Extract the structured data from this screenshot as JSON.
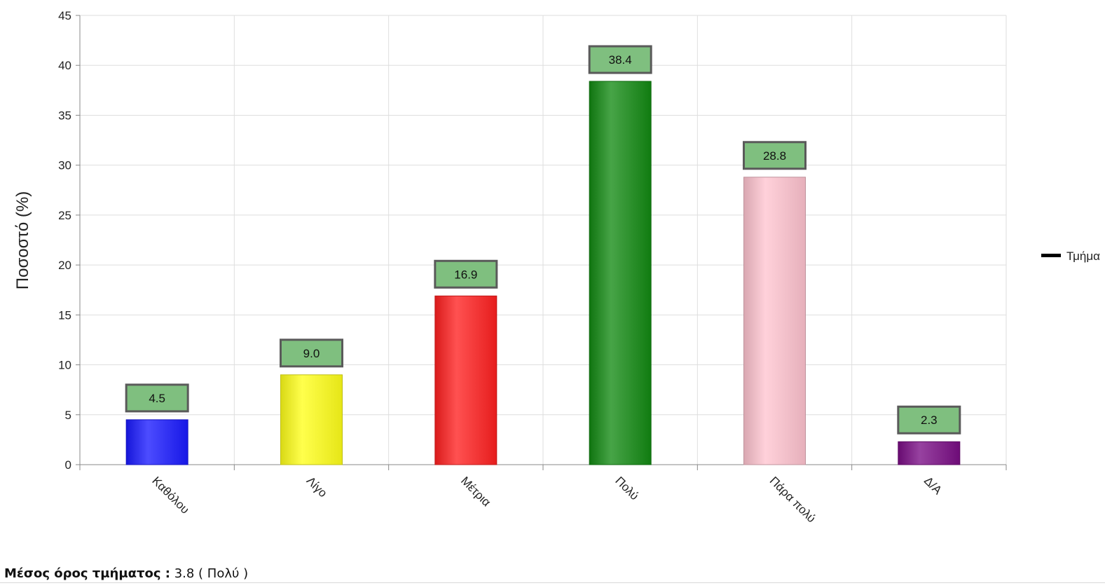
{
  "chart_data": {
    "type": "bar",
    "title": "",
    "xlabel": "",
    "ylabel": "Ποσοστό (%)",
    "ylim": [
      0,
      45
    ],
    "yticks": [
      0,
      5,
      10,
      15,
      20,
      25,
      30,
      35,
      40,
      45
    ],
    "grid": true,
    "legend_position": "right",
    "categories": [
      "Καθόλου",
      "Λίγο",
      "Μέτρια",
      "Πολύ",
      "Πάρα πολύ",
      "Δ/Α"
    ],
    "series": [
      {
        "name": "Τμήμα",
        "values": [
          4.5,
          9.0,
          16.9,
          38.4,
          28.8,
          2.3
        ],
        "data_labels": [
          "4.5",
          "9.0",
          "16.9",
          "38.4",
          "28.8",
          "2.3"
        ],
        "colors": [
          "#1a1aff",
          "#ffff1a",
          "#ff2020",
          "#138a13",
          "#ffc4d0",
          "#7a0d85"
        ]
      }
    ],
    "data_label_box_color": "#7fbf7f"
  },
  "footer": {
    "label": "Μέσος όρος τμήματος :",
    "value": "3.8 ( Πολύ )"
  }
}
